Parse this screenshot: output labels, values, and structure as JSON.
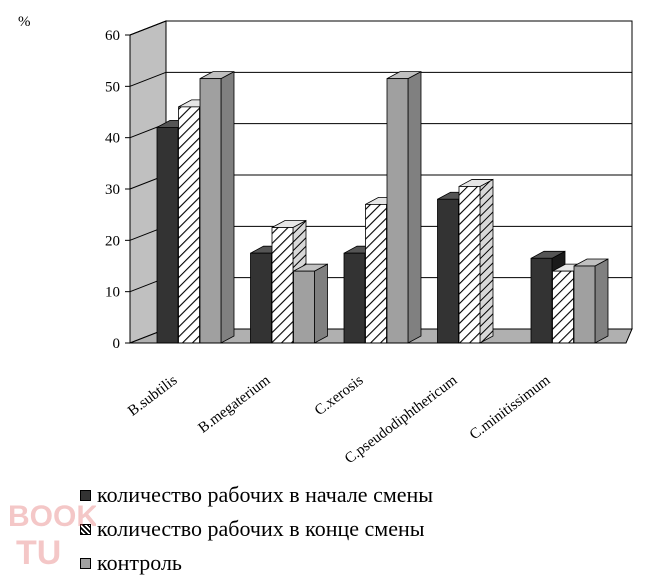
{
  "chart_data": {
    "type": "bar",
    "y_unit": "%",
    "ylim": [
      0,
      60
    ],
    "yticks": [
      0,
      10,
      20,
      30,
      40,
      50,
      60
    ],
    "grid": true,
    "legend_position": "bottom",
    "categories": [
      "B.subtilis",
      "B.megaterium",
      "C.xerosis",
      "C.pseudodiphthericum",
      "C.minitissimum"
    ],
    "series": [
      {
        "name": "количество рабочих в начале смены",
        "values": [
          42,
          17.5,
          17.5,
          28,
          16.5
        ],
        "color": "#333333",
        "pattern": "solid"
      },
      {
        "name": "количество рабочих в конце смены",
        "values": [
          46,
          22.5,
          27,
          30.5,
          14
        ],
        "color": "#ffffff",
        "pattern": "hatch"
      },
      {
        "name": "контроль",
        "values": [
          51.5,
          14,
          51.5,
          null,
          15
        ],
        "color": "#a0a0a0",
        "pattern": "solid"
      }
    ]
  },
  "watermark": {
    "text": "BOOK",
    "color": "#e06060"
  }
}
